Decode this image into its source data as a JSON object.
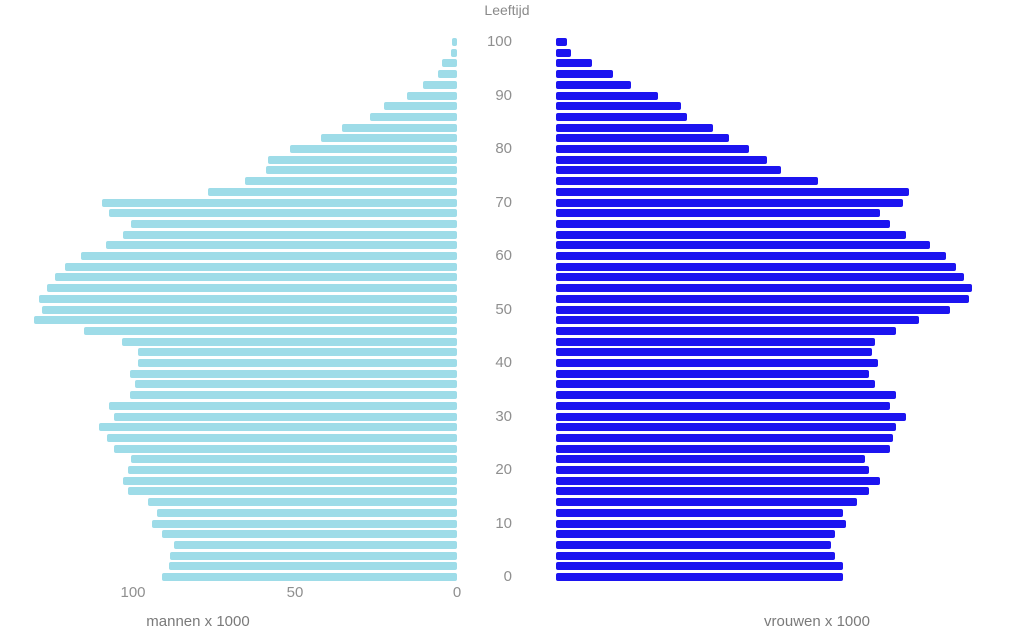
{
  "title": "Leeftijd",
  "colors": {
    "mannen_bar": "#9edce8",
    "vrouwen_bar": "#1c14f0",
    "tick_text": "#8f8f8f",
    "title_text": "#8a8a8a"
  },
  "left_axis_title": "mannen x 1000",
  "right_axis_title": "vrouwen x 1000",
  "chart_data": {
    "type": "bar",
    "subtype": "population-pyramid",
    "title": "Leeftijd",
    "ylabel": "Leeftijd",
    "age_step": 2,
    "ages": [
      100,
      98,
      96,
      94,
      92,
      90,
      88,
      86,
      84,
      82,
      80,
      78,
      76,
      74,
      72,
      70,
      68,
      66,
      64,
      62,
      60,
      58,
      56,
      54,
      52,
      50,
      48,
      46,
      44,
      42,
      40,
      38,
      36,
      34,
      32,
      30,
      28,
      26,
      24,
      22,
      20,
      18,
      16,
      14,
      12,
      10,
      8,
      6,
      4,
      2,
      0
    ],
    "series": [
      {
        "name": "mannen x 1000",
        "side": "left",
        "color": "#9edce8",
        "values": [
          1.5,
          2,
          4.5,
          6,
          10.5,
          15.5,
          22.5,
          27,
          35.5,
          42,
          51.5,
          58.5,
          59,
          65.5,
          77,
          109.5,
          107.5,
          100.5,
          103,
          108.5,
          116,
          121,
          124,
          126.5,
          129,
          128,
          130.5,
          115,
          103.5,
          98.5,
          98.5,
          101,
          99.5,
          101,
          107.5,
          106,
          110.5,
          108,
          106,
          100.5,
          101.5,
          103,
          101.5,
          95.5,
          92.5,
          94,
          91,
          87.5,
          88.5,
          89,
          91
        ]
      },
      {
        "name": "vrouwen x 1000",
        "side": "right",
        "color": "#1c14f0",
        "values": [
          3.5,
          4.5,
          11,
          17.5,
          23,
          31.5,
          38.5,
          40.5,
          48.5,
          53.5,
          59.5,
          65,
          69.5,
          81,
          109,
          107,
          100,
          103,
          108,
          115.5,
          120.5,
          123.5,
          126,
          128.5,
          127.5,
          121.5,
          112,
          105,
          98.5,
          97.5,
          99.5,
          96.5,
          98.5,
          105,
          103,
          108,
          105,
          104,
          103,
          95.5,
          96.5,
          100,
          96.5,
          93,
          88.5,
          89.5,
          86,
          85,
          86,
          88.5,
          88.5
        ]
      }
    ],
    "y_tick_ages": [
      100,
      90,
      80,
      70,
      60,
      50,
      40,
      30,
      20,
      10,
      0
    ],
    "x_ticks_left": [
      100,
      50,
      0
    ],
    "x_ticks_right": [],
    "xlim_each_side": [
      0,
      140
    ],
    "grid": false,
    "legend": false
  }
}
